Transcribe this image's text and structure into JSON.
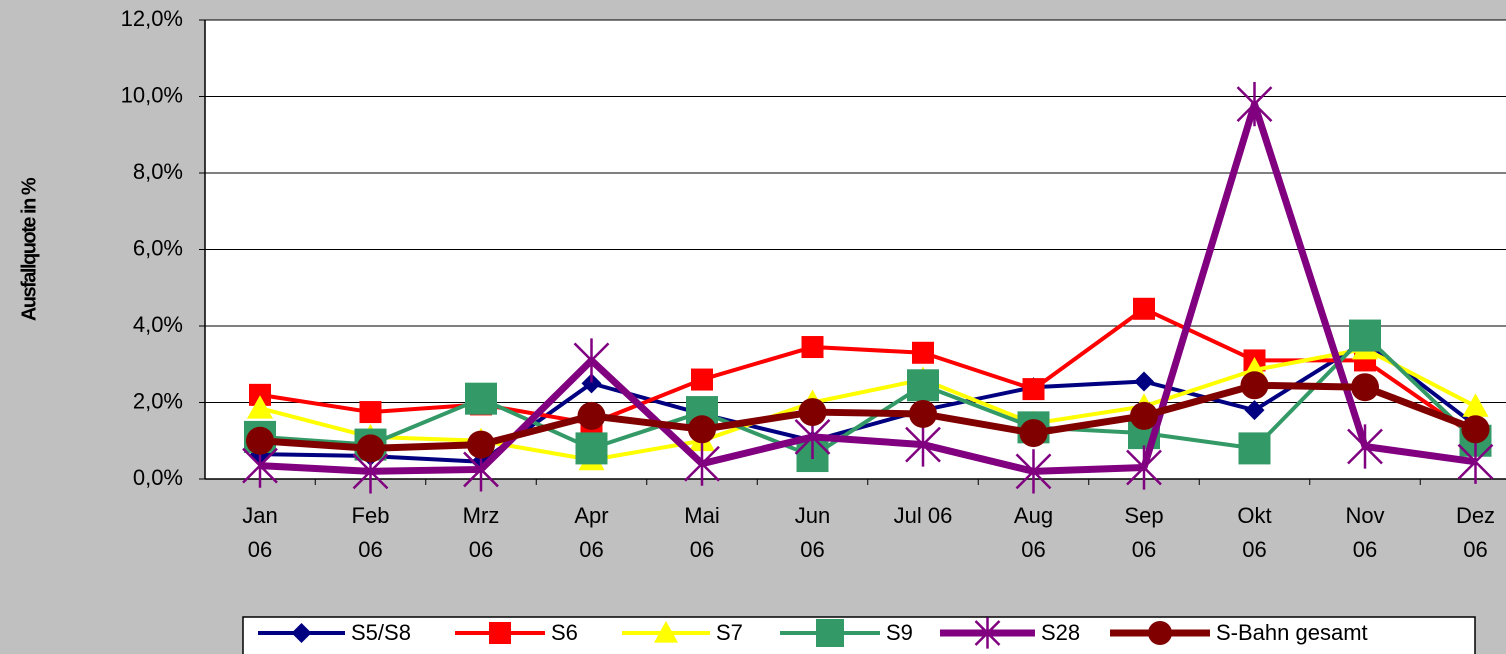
{
  "chart_data": {
    "type": "line",
    "y_axis_label": "Ausfallquote in %",
    "categories": [
      "Jan\n06",
      "Feb\n06",
      "Mrz\n06",
      "Apr\n06",
      "Mai\n06",
      "Jun\n06",
      "Jul 06",
      "Aug\n06",
      "Sep\n06",
      "Okt\n06",
      "Nov\n06",
      "Dez\n06"
    ],
    "series": [
      {
        "name": "S5/S8",
        "color": "#000080",
        "marker": "diamond",
        "values": [
          0.65,
          0.6,
          0.45,
          2.5,
          1.7,
          1.0,
          1.8,
          2.4,
          2.55,
          1.8,
          3.6,
          1.4
        ]
      },
      {
        "name": "S6",
        "color": "#ff0000",
        "marker": "square",
        "values": [
          2.2,
          1.75,
          1.95,
          1.45,
          2.6,
          3.45,
          3.3,
          2.35,
          4.45,
          3.1,
          3.1,
          1.1
        ]
      },
      {
        "name": "S7",
        "color": "#ffff00",
        "marker": "triangle",
        "values": [
          1.85,
          1.1,
          1.0,
          0.5,
          1.0,
          2.0,
          2.6,
          1.45,
          1.9,
          2.85,
          3.4,
          1.9
        ]
      },
      {
        "name": "S9",
        "color": "#339966",
        "marker": "square",
        "values": [
          1.1,
          0.9,
          2.1,
          0.8,
          1.75,
          0.6,
          2.45,
          1.35,
          1.2,
          0.8,
          3.75,
          1.0
        ]
      },
      {
        "name": "S28",
        "color": "#800080",
        "marker": "star",
        "values": [
          0.35,
          0.2,
          0.25,
          3.1,
          0.4,
          1.1,
          0.9,
          0.2,
          0.3,
          9.8,
          0.85,
          0.45
        ]
      },
      {
        "name": "S-Bahn gesamt",
        "color": "#800000",
        "marker": "circle",
        "values": [
          1.0,
          0.8,
          0.9,
          1.65,
          1.3,
          1.75,
          1.7,
          1.2,
          1.65,
          2.45,
          2.4,
          1.3
        ]
      }
    ],
    "ylim": [
      0,
      12
    ],
    "yticks": [
      {
        "value": 0,
        "label": "0,0%"
      },
      {
        "value": 2,
        "label": "2,0%"
      },
      {
        "value": 4,
        "label": "4,0%"
      },
      {
        "value": 6,
        "label": "6,0%"
      },
      {
        "value": 8,
        "label": "8,0%"
      },
      {
        "value": 10,
        "label": "10,0%"
      },
      {
        "value": 12,
        "label": "12,0%"
      }
    ],
    "grid": true,
    "legend": "bottom"
  }
}
